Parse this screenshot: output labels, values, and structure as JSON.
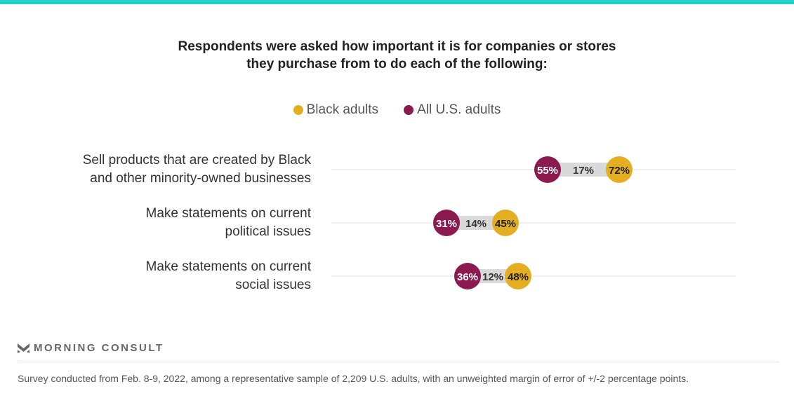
{
  "chart_data": {
    "type": "dot",
    "title": "Respondents were asked how important it is for companies or stores they purchase from to do each of the following:",
    "title_lines": [
      "Respondents were asked how important it is for companies or stores",
      "they purchase from to do each of the following:"
    ],
    "legend": [
      {
        "name": "Black adults",
        "color": "#e3ae21"
      },
      {
        "name": "All U.S. adults",
        "color": "#8a1a4f"
      }
    ],
    "xlim": [
      0,
      100
    ],
    "categories": [
      [
        "Sell products that are created by Black",
        "and other minority-owned businesses"
      ],
      [
        "Make statements on current",
        "political issues"
      ],
      [
        "Make statements on current",
        "social issues"
      ]
    ],
    "series": [
      {
        "name": "All U.S. adults",
        "values": [
          55,
          31,
          36
        ]
      },
      {
        "name": "Black adults",
        "values": [
          72,
          45,
          48
        ]
      }
    ],
    "gaps": [
      17,
      14,
      12
    ],
    "value_suffix": "%"
  },
  "brand": "MORNING CONSULT",
  "footnote": "Survey conducted from Feb. 8-9, 2022, among a representative sample of 2,209 U.S. adults, with an unweighted margin of error of +/-2 percentage points."
}
